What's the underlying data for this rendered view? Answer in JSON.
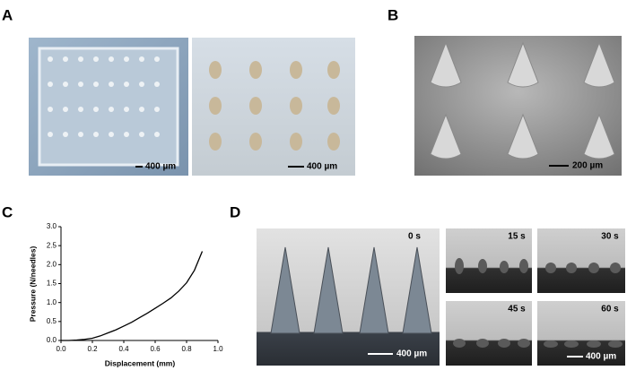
{
  "panels": {
    "A": {
      "label": "A",
      "scale_bars": [
        "400 µm",
        "400 µm"
      ]
    },
    "B": {
      "label": "B",
      "scale_bar": "200 µm"
    },
    "C": {
      "label": "C"
    },
    "D": {
      "label": "D",
      "times": [
        "0 s",
        "15 s",
        "30 s",
        "45 s",
        "60 s"
      ],
      "scale_bars": [
        "400 µm",
        "400 µm"
      ]
    }
  },
  "chart_data": {
    "type": "line",
    "color": "#000000",
    "xlabel": "Displacement (mm)",
    "ylabel": "Pressure (N/needles)",
    "x": [
      0,
      0.05,
      0.1,
      0.15,
      0.2,
      0.25,
      0.3,
      0.35,
      0.4,
      0.45,
      0.5,
      0.55,
      0.6,
      0.65,
      0.7,
      0.75,
      0.8,
      0.85,
      0.9
    ],
    "values": [
      0,
      0,
      0.01,
      0.03,
      0.06,
      0.12,
      0.2,
      0.28,
      0.38,
      0.48,
      0.6,
      0.72,
      0.85,
      0.98,
      1.12,
      1.3,
      1.52,
      1.85,
      2.35
    ],
    "xlim": [
      0,
      1.0
    ],
    "ylim": [
      0,
      3.0
    ],
    "xticks": [
      {
        "value": 0,
        "label": "0.0"
      },
      {
        "value": 0.2,
        "label": "0.2"
      },
      {
        "value": 0.4,
        "label": "0.4"
      },
      {
        "value": 0.6,
        "label": "0.6"
      },
      {
        "value": 0.8,
        "label": "0.8"
      },
      {
        "value": 1.0,
        "label": "1.0"
      }
    ],
    "yticks": [
      {
        "value": 0,
        "label": "0.0"
      },
      {
        "value": 0.5,
        "label": "0.5"
      },
      {
        "value": 1.0,
        "label": "1.0"
      },
      {
        "value": 1.5,
        "label": "1.5"
      },
      {
        "value": 2.0,
        "label": "2.0"
      },
      {
        "value": 2.5,
        "label": "2.5"
      },
      {
        "value": 3.0,
        "label": "3.0"
      }
    ]
  }
}
